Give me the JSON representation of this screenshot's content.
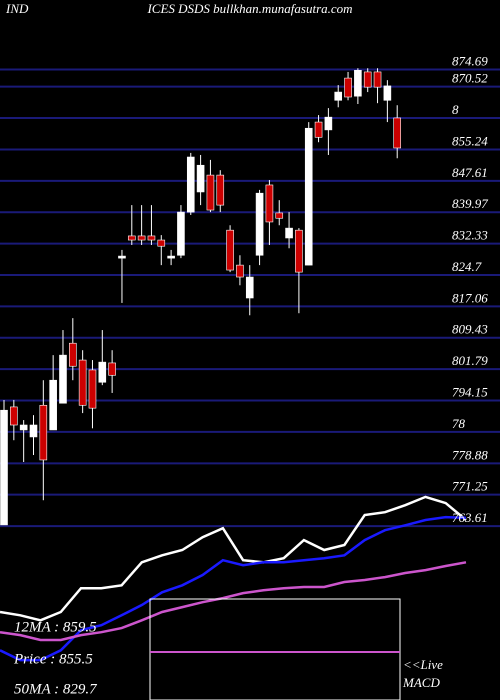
{
  "chart_data": {
    "type": "candlestick",
    "subtitle": "IND",
    "title": "ICES DSDS bullkhan.munafasutra.com",
    "ylim": [
      721.3,
      891.6
    ],
    "yticks": [
      874.69,
      870.52,
      {
        "value": 862.88,
        "label": "8"
      },
      855.24,
      847.61,
      839.97,
      832.33,
      824.7,
      817.06,
      809.43,
      801.79,
      794.15,
      {
        "value": 786.52,
        "label": "78"
      },
      778.88,
      771.25,
      763.61
    ],
    "grid": true,
    "grid_color": "#1a1a78",
    "up_color": "#ffffff",
    "down_color": "#cc0000",
    "open": [
      763.9,
      792.6,
      787.0,
      785.3,
      793.0,
      787.0,
      793.5,
      808.1,
      804.0,
      801.6,
      798.6,
      803.3,
      828.8,
      834.2,
      834.2,
      834.2,
      833.2,
      828.8,
      829.5,
      840.0,
      844.9,
      849.0,
      849.0,
      835.6,
      827.1,
      819.1,
      829.5,
      846.6,
      839.8,
      833.7,
      835.6,
      827.1,
      861.9,
      860.0,
      867.2,
      872.6,
      868.2,
      874.1,
      874.1,
      867.2,
      862.9
    ],
    "high": [
      794.3,
      794.3,
      789.4,
      790.6,
      799.1,
      805.2,
      811.3,
      814.2,
      806.4,
      804.0,
      811.3,
      806.4,
      830.8,
      841.7,
      841.7,
      841.7,
      834.4,
      830.8,
      841.7,
      854.4,
      853.9,
      852.7,
      850.2,
      836.8,
      829.5,
      827.1,
      845.4,
      847.8,
      842.9,
      840.0,
      836.1,
      861.9,
      863.6,
      865.3,
      870.9,
      874.1,
      875.0,
      875.0,
      875.0,
      872.1,
      866.0
    ],
    "low": [
      763.9,
      784.5,
      779.2,
      780.9,
      769.9,
      787.0,
      793.5,
      799.1,
      791.1,
      787.4,
      797.9,
      796.0,
      817.9,
      832.0,
      832.0,
      832.0,
      827.1,
      827.1,
      828.8,
      839.3,
      841.7,
      840.0,
      840.0,
      825.4,
      822.2,
      814.9,
      827.1,
      832.0,
      836.8,
      831.2,
      815.4,
      827.1,
      857.0,
      853.9,
      865.5,
      867.2,
      866.3,
      869.2,
      866.5,
      861.9,
      853.1
    ],
    "close": [
      791.8,
      788.2,
      788.2,
      788.2,
      779.7,
      799.1,
      805.2,
      802.5,
      793.0,
      792.3,
      803.5,
      800.3,
      829.3,
      833.2,
      833.2,
      833.2,
      831.7,
      829.3,
      840.0,
      853.4,
      851.4,
      840.5,
      841.7,
      825.9,
      824.2,
      824.2,
      844.6,
      837.6,
      838.5,
      836.1,
      825.4,
      860.4,
      858.2,
      863.1,
      869.2,
      868.0,
      874.5,
      870.4,
      870.4,
      870.7,
      855.6
    ],
    "series": [
      {
        "color": "#ffffff",
        "values": [
          742.7,
          741.9,
          740.7,
          742.7,
          748.5,
          748.5,
          749.2,
          754.8,
          756.5,
          757.8,
          760.9,
          763.1,
          755.3,
          754.8,
          755.8,
          760.2,
          757.8,
          759.0,
          766.3,
          767.0,
          768.7,
          770.7,
          769.2,
          765.1
        ]
      },
      {
        "color": "#1a1aff",
        "values": [
          733.4,
          731.0,
          731.0,
          733.4,
          738.3,
          739.5,
          741.9,
          744.4,
          747.5,
          749.2,
          751.7,
          755.3,
          754.1,
          754.8,
          754.8,
          755.3,
          755.8,
          756.5,
          760.2,
          762.6,
          763.8,
          765.1,
          765.8,
          765.6
        ]
      },
      {
        "color": "#cc55cc",
        "values": [
          737.8,
          737.1,
          735.9,
          735.9,
          737.1,
          737.8,
          738.8,
          740.7,
          742.7,
          743.9,
          745.1,
          746.1,
          747.3,
          748.0,
          748.5,
          748.8,
          748.8,
          750.0,
          750.5,
          751.2,
          752.2,
          752.9,
          753.9,
          754.8
        ]
      }
    ],
    "annotations": [
      "12MA : 859.5",
      "Price  : 855.5",
      "50MA : 829.7",
      "<<Live",
      "MACD"
    ]
  }
}
